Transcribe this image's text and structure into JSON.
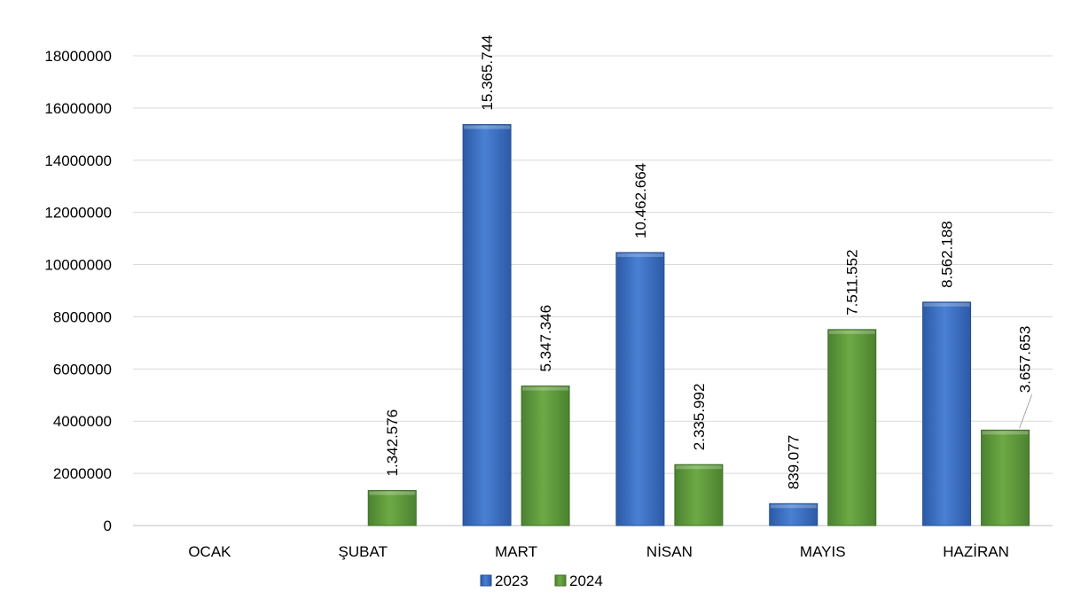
{
  "chart_data": {
    "type": "bar",
    "title": "",
    "xlabel": "",
    "ylabel": "",
    "categories": [
      "OCAK",
      "ŞUBAT",
      "MART",
      "NİSAN",
      "MAYIS",
      "HAZİRAN"
    ],
    "series": [
      {
        "name": "2023",
        "color": "#3B6FC4",
        "values": [
          null,
          null,
          15365744,
          10462664,
          839077,
          8562188
        ],
        "labels": [
          "",
          "",
          "15.365.744",
          "10.462.664",
          "839.077",
          "8.562.188"
        ]
      },
      {
        "name": "2024",
        "color": "#5E9A3A",
        "values": [
          null,
          1342576,
          5347346,
          2335992,
          7511552,
          3657653
        ],
        "labels": [
          "",
          "1.342.576",
          "5.347.346",
          "2.335.992",
          "7.511.552",
          "3.657.653"
        ]
      }
    ],
    "ylim": [
      0,
      18000000
    ],
    "yticks": [
      0,
      2000000,
      4000000,
      6000000,
      8000000,
      10000000,
      12000000,
      14000000,
      16000000,
      18000000
    ],
    "ytick_labels": [
      "0",
      "2000000",
      "4000000",
      "6000000",
      "8000000",
      "10000000",
      "12000000",
      "14000000",
      "16000000",
      "18000000"
    ],
    "grid": true,
    "legend": "bottom"
  }
}
